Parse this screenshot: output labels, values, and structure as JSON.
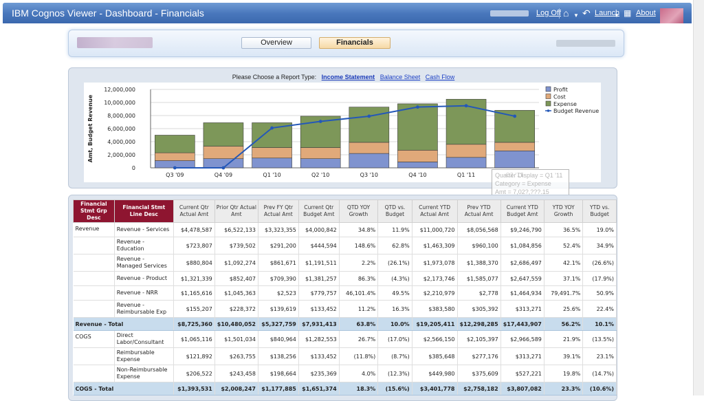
{
  "app": {
    "title": "IBM Cognos Viewer - Dashboard - Financials",
    "logoff_label": "Log Off",
    "launch_label": "Launch",
    "about_label": "About"
  },
  "tabs": [
    {
      "label": "Overview",
      "active": false
    },
    {
      "label": "Financials",
      "active": true
    }
  ],
  "report_type": {
    "prompt": "Please Choose a Report Type:",
    "options": [
      "Income Statement",
      "Balance Sheet",
      "Cash Flow"
    ],
    "selected": "Income Statement"
  },
  "chart_data": {
    "type": "bar",
    "stacked": true,
    "ylabel": "Amt, Budget Revenue",
    "ylim": [
      0,
      12000000
    ],
    "yticks": [
      "0",
      "2,000,000",
      "4,000,000",
      "6,000,000",
      "8,000,000",
      "10,000,000",
      "12,000,000"
    ],
    "categories": [
      "Q3 '09",
      "Q4 '09",
      "Q1 '10",
      "Q2 '10",
      "Q3 '10",
      "Q4 '10",
      "Q1 '11",
      "Q2 '11"
    ],
    "series": [
      {
        "name": "Profit",
        "color": "#7f93cf",
        "values": [
          1100000,
          1400000,
          1500000,
          1400000,
          2200000,
          900000,
          1600000,
          2600000
        ]
      },
      {
        "name": "Cost",
        "color": "#e0a97a",
        "values": [
          1200000,
          1900000,
          1600000,
          1700000,
          1700000,
          1800000,
          2000000,
          1300000
        ]
      },
      {
        "name": "Expense",
        "color": "#7d9759",
        "values": [
          2700000,
          3600000,
          3800000,
          4800000,
          5400000,
          7100000,
          6900000,
          4900000
        ]
      }
    ],
    "line": {
      "name": "Budget Revenue",
      "color": "#2458b8",
      "values": [
        0,
        0,
        6100000,
        7100000,
        7900000,
        9300000,
        9500000,
        7900000
      ]
    },
    "legend_position": "top-right",
    "tooltip": [
      "Quarter Display = Q1 '11",
      "Category = Expense",
      "Amt = 7,02?,???.15"
    ]
  },
  "table": {
    "headers": [
      "Financial Stmt Grp Desc",
      "Financial Stmt Line Desc",
      "Current Qtr Actual Amt",
      "Prior Qtr Actual Amt",
      "Prev FY Qtr Actual Amt",
      "Current Qtr Budget Amt",
      "QTD YOY Growth",
      "QTD vs. Budget",
      "Current YTD Actual Amt",
      "Prev YTD Actual Amt",
      "Current YTD Budget Amt",
      "YTD YOY Growth",
      "YTD vs. Budget"
    ],
    "rows": [
      {
        "type": "line",
        "group": "Revenue",
        "desc": "Revenue - Services",
        "values": [
          "$4,478,587",
          "$6,522,133",
          "$3,323,355",
          "$4,000,842",
          "34.8%",
          "11.9%",
          "$11,000,720",
          "$8,056,568",
          "$9,246,790",
          "36.5%",
          "19.0%"
        ]
      },
      {
        "type": "line",
        "group": "",
        "desc": "Revenue - Education",
        "values": [
          "$723,807",
          "$739,502",
          "$291,200",
          "$444,594",
          "148.6%",
          "62.8%",
          "$1,463,309",
          "$960,100",
          "$1,084,856",
          "52.4%",
          "34.9%"
        ]
      },
      {
        "type": "line",
        "group": "",
        "desc": "Revenue - Managed Services",
        "values": [
          "$880,804",
          "$1,092,274",
          "$861,671",
          "$1,191,511",
          "2.2%",
          "(26.1%)",
          "$1,973,078",
          "$1,388,370",
          "$2,686,497",
          "42.1%",
          "(26.6%)"
        ]
      },
      {
        "type": "line",
        "group": "",
        "desc": "Revenue - Product",
        "values": [
          "$1,321,339",
          "$852,407",
          "$709,390",
          "$1,381,257",
          "86.3%",
          "(4.3%)",
          "$2,173,746",
          "$1,585,077",
          "$2,647,559",
          "37.1%",
          "(17.9%)"
        ]
      },
      {
        "type": "line",
        "group": "",
        "desc": "Revenue - NRR",
        "values": [
          "$1,165,616",
          "$1,045,363",
          "$2,523",
          "$779,757",
          "46,101.4%",
          "49.5%",
          "$2,210,979",
          "$2,778",
          "$1,464,934",
          "79,491.7%",
          "50.9%"
        ]
      },
      {
        "type": "line",
        "group": "",
        "desc": "Revenue - Reimbursable Exp",
        "values": [
          "$155,207",
          "$228,372",
          "$139,619",
          "$133,452",
          "11.2%",
          "16.3%",
          "$383,580",
          "$305,392",
          "$313,271",
          "25.6%",
          "22.4%"
        ]
      },
      {
        "type": "total",
        "group": "Revenue - Total",
        "desc": "",
        "values": [
          "$8,725,360",
          "$10,480,052",
          "$5,327,759",
          "$7,931,413",
          "63.8%",
          "10.0%",
          "$19,205,411",
          "$12,298,285",
          "$17,443,907",
          "56.2%",
          "10.1%"
        ]
      },
      {
        "type": "line",
        "group": "COGS",
        "desc": "Direct Labor/Consultant",
        "values": [
          "$1,065,116",
          "$1,501,034",
          "$840,964",
          "$1,282,553",
          "26.7%",
          "(17.0%)",
          "$2,566,150",
          "$2,105,397",
          "$2,966,589",
          "21.9%",
          "(13.5%)"
        ]
      },
      {
        "type": "line",
        "group": "",
        "desc": "Reimbursable Expense",
        "values": [
          "$121,892",
          "$263,755",
          "$138,256",
          "$133,452",
          "(11.8%)",
          "(8.7%)",
          "$385,648",
          "$277,176",
          "$313,271",
          "39.1%",
          "23.1%"
        ]
      },
      {
        "type": "line",
        "group": "",
        "desc": "Non-Reimbursable Expense",
        "values": [
          "$206,522",
          "$243,458",
          "$198,664",
          "$235,369",
          "4.0%",
          "(12.3%)",
          "$449,980",
          "$375,609",
          "$527,221",
          "19.8%",
          "(14.7%)"
        ]
      },
      {
        "type": "total",
        "group": "COGS - Total",
        "desc": "",
        "values": [
          "$1,393,531",
          "$2,008,247",
          "$1,177,885",
          "$1,651,374",
          "18.3%",
          "(15.6%)",
          "$3,401,778",
          "$2,758,182",
          "$3,807,082",
          "23.3%",
          "(10.6%)"
        ]
      }
    ]
  }
}
